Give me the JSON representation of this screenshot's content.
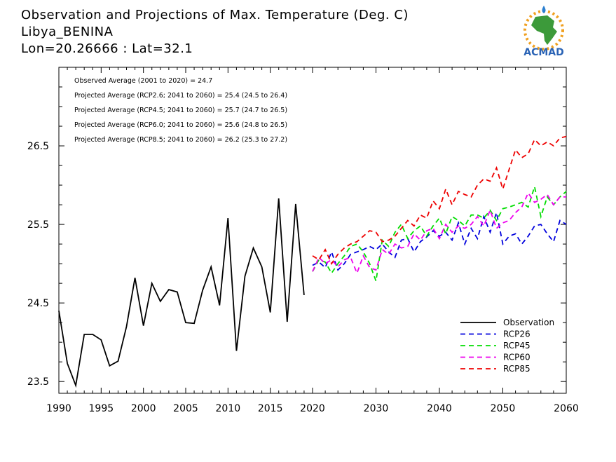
{
  "title_lines": [
    "Observation and Projections of Max. Temperature (Deg. C)",
    "Libya_BENINA",
    "Lon=20.26666 : Lat=32.1"
  ],
  "logo": {
    "text": "ACMAD"
  },
  "stats": [
    "Observed Average (2001 to 2020) = 24.7",
    "Projected Average (RCP2.6; 2041 to 2060) = 25.4 (24.5 to 26.4)",
    "Projected Average (RCP4.5; 2041 to 2060) = 25.7 (24.7 to 26.5)",
    "Projected Average (RCP6.0; 2041 to 2060) = 25.6 (24.8 to 26.5)",
    "Projected Average (RCP8.5; 2041 to 2060) = 26.2 (25.3 to 27.2)"
  ],
  "chart_data": {
    "type": "line",
    "title": "Observation and Projections of Max. Temperature (Deg. C)",
    "xlabel": "",
    "ylabel": "",
    "xlim": [
      1990,
      2060
    ],
    "ylim": [
      23.35,
      27.5
    ],
    "x_ticks": [
      1990,
      1995,
      2000,
      2005,
      2010,
      2015,
      2020,
      2030,
      2040,
      2050,
      2060
    ],
    "y_ticks": [
      23.5,
      24.5,
      25.5,
      26.5
    ],
    "legend_position": "bottom-right",
    "series": [
      {
        "name": "Observation",
        "color": "#000000",
        "dashed": false,
        "x": [
          1990,
          1991,
          1992,
          1993,
          1994,
          1995,
          1996,
          1997,
          1998,
          1999,
          2000,
          2001,
          2002,
          2003,
          2004,
          2005,
          2006,
          2007,
          2008,
          2009,
          2010,
          2011,
          2012,
          2013,
          2014,
          2015,
          2016,
          2017,
          2018,
          2019,
          2020
        ],
        "y": [
          24.4,
          23.73,
          23.45,
          24.1,
          24.1,
          24.03,
          23.7,
          23.76,
          24.2,
          24.82,
          24.21,
          24.75,
          24.52,
          24.67,
          24.64,
          24.25,
          24.24,
          24.66,
          24.96,
          24.47,
          25.58,
          23.89,
          24.84,
          25.2,
          24.96,
          24.38,
          25.83,
          24.26,
          25.76,
          24.6,
          null
        ]
      },
      {
        "name": "RCP26",
        "color": "#0000dd",
        "dashed": true,
        "x": [
          2020,
          2021,
          2022,
          2023,
          2024,
          2025,
          2026,
          2027,
          2028,
          2029,
          2030,
          2031,
          2032,
          2033,
          2034,
          2035,
          2036,
          2037,
          2038,
          2039,
          2040,
          2041,
          2042,
          2043,
          2044,
          2045,
          2046,
          2047,
          2048,
          2049,
          2050,
          2051,
          2052,
          2053,
          2054,
          2055,
          2056,
          2057,
          2058,
          2059,
          2060
        ],
        "y": [
          24.98,
          25.02,
          24.95,
          25.15,
          24.92,
          25.0,
          25.12,
          25.15,
          25.18,
          25.22,
          25.18,
          25.25,
          25.15,
          25.08,
          25.3,
          25.32,
          25.15,
          25.28,
          25.34,
          25.42,
          25.35,
          25.4,
          25.3,
          25.52,
          25.25,
          25.45,
          25.32,
          25.6,
          25.4,
          25.65,
          25.25,
          25.35,
          25.38,
          25.25,
          25.35,
          25.48,
          25.5,
          25.38,
          25.28,
          25.55,
          25.5
        ]
      },
      {
        "name": "RCP45",
        "color": "#00dd00",
        "dashed": true,
        "x": [
          2020,
          2021,
          2022,
          2023,
          2024,
          2025,
          2026,
          2027,
          2028,
          2029,
          2030,
          2031,
          2032,
          2033,
          2034,
          2035,
          2036,
          2037,
          2038,
          2039,
          2040,
          2041,
          2042,
          2043,
          2044,
          2045,
          2046,
          2047,
          2048,
          2049,
          2050,
          2051,
          2052,
          2053,
          2054,
          2055,
          2056,
          2057,
          2058,
          2059,
          2060
        ],
        "y": [
          24.9,
          25.05,
          25.02,
          24.88,
          25.0,
          25.1,
          25.22,
          25.25,
          25.15,
          25.0,
          24.78,
          25.3,
          25.22,
          25.4,
          25.5,
          25.32,
          25.42,
          25.48,
          25.35,
          25.48,
          25.58,
          25.38,
          25.6,
          25.55,
          25.48,
          25.62,
          25.62,
          25.58,
          25.68,
          25.55,
          25.7,
          25.72,
          25.75,
          25.78,
          25.72,
          25.98,
          25.6,
          25.85,
          25.75,
          25.85,
          25.92
        ]
      },
      {
        "name": "RCP60",
        "color": "#ee00ee",
        "dashed": true,
        "x": [
          2020,
          2021,
          2022,
          2023,
          2024,
          2025,
          2026,
          2027,
          2028,
          2029,
          2030,
          2031,
          2032,
          2033,
          2034,
          2035,
          2036,
          2037,
          2038,
          2039,
          2040,
          2041,
          2042,
          2043,
          2044,
          2045,
          2046,
          2047,
          2048,
          2049,
          2050,
          2051,
          2052,
          2053,
          2054,
          2055,
          2056,
          2057,
          2058,
          2059,
          2060
        ],
        "y": [
          24.9,
          25.08,
          25.0,
          25.05,
          24.96,
          25.05,
          25.08,
          24.88,
          25.1,
          24.95,
          24.92,
          25.18,
          25.12,
          25.25,
          25.2,
          25.22,
          25.38,
          25.3,
          25.42,
          25.45,
          25.32,
          25.5,
          25.4,
          25.48,
          25.45,
          25.5,
          25.6,
          25.48,
          25.68,
          25.45,
          25.52,
          25.55,
          25.65,
          25.72,
          25.9,
          25.78,
          25.82,
          25.88,
          25.75,
          25.85,
          25.85
        ]
      },
      {
        "name": "RCP85",
        "color": "#ee0000",
        "dashed": true,
        "x": [
          2020,
          2021,
          2022,
          2023,
          2024,
          2025,
          2026,
          2027,
          2028,
          2029,
          2030,
          2031,
          2032,
          2033,
          2034,
          2035,
          2036,
          2037,
          2038,
          2039,
          2040,
          2041,
          2042,
          2043,
          2044,
          2045,
          2046,
          2047,
          2048,
          2049,
          2050,
          2051,
          2052,
          2053,
          2054,
          2055,
          2056,
          2057,
          2058,
          2059,
          2060
        ],
        "y": [
          25.1,
          25.05,
          25.18,
          25.0,
          25.12,
          25.2,
          25.25,
          25.28,
          25.35,
          25.42,
          25.4,
          25.28,
          25.3,
          25.35,
          25.45,
          25.55,
          25.48,
          25.62,
          25.58,
          25.8,
          25.7,
          25.95,
          25.75,
          25.92,
          25.88,
          25.85,
          26.0,
          26.08,
          26.05,
          26.22,
          25.95,
          26.2,
          26.45,
          26.35,
          26.4,
          26.58,
          26.5,
          26.55,
          26.5,
          26.6,
          26.62
        ]
      }
    ]
  }
}
